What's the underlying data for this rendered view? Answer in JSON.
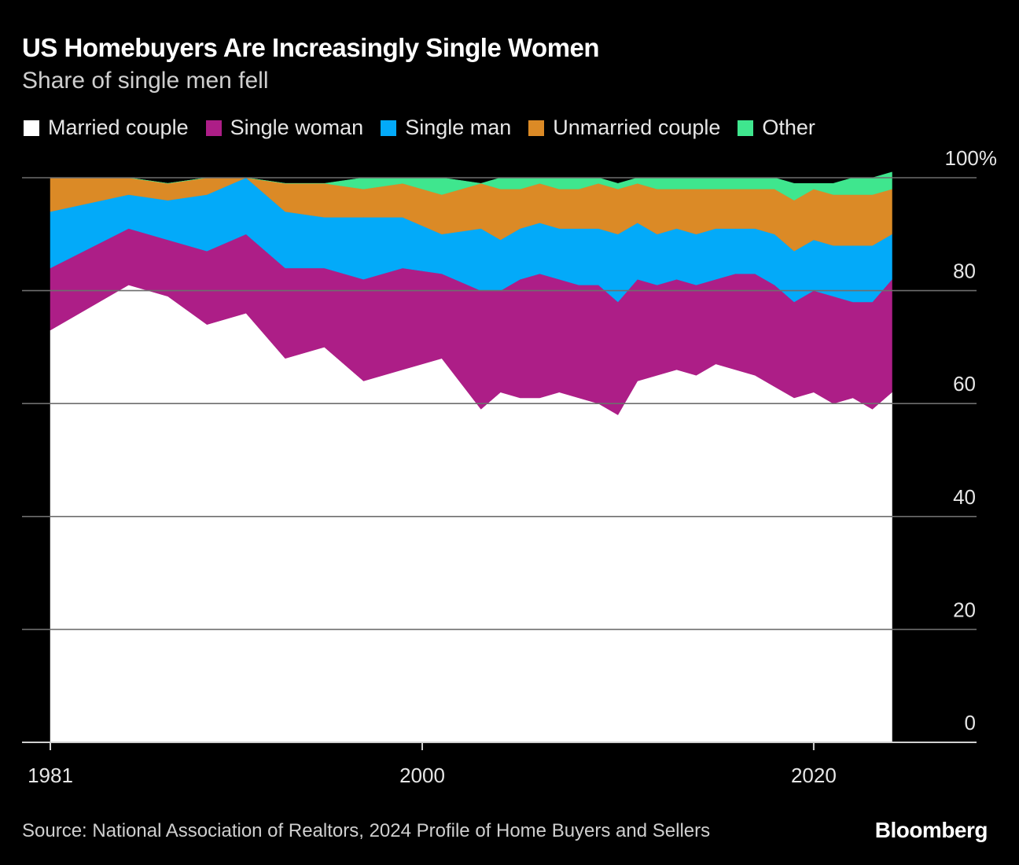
{
  "header": {
    "title": "US Homebuyers Are Increasingly Single Women",
    "subtitle": "Share of single men fell"
  },
  "footer": {
    "source": "Source: National Association of Realtors, 2024 Profile of Home Buyers and Sellers",
    "brand": "Bloomberg"
  },
  "colors": {
    "Married couple": "#ffffff",
    "Single woman": "#ad1e87",
    "Single man": "#03aaf9",
    "Unmarried couple": "#db8a26",
    "Other": "#3fe68e",
    "background": "#000000",
    "grid": "#6e6e6e"
  },
  "chart_data": {
    "type": "area",
    "stacked": true,
    "legend": [
      "Married couple",
      "Single woman",
      "Single man",
      "Unmarried couple",
      "Other"
    ],
    "legend_position": "top-left",
    "y_axis_position": "right",
    "ylim": [
      0,
      100
    ],
    "y_ticks": [
      0,
      20,
      40,
      60,
      80,
      100
    ],
    "y_tick_labels": [
      "0",
      "20",
      "40",
      "60",
      "80",
      "100%"
    ],
    "x_ticks": [
      1981,
      2000,
      2020
    ],
    "x_tick_labels": [
      "1981",
      "2000",
      "2020"
    ],
    "xlim": [
      1981,
      2027
    ],
    "x": [
      1981,
      1985,
      1987,
      1989,
      1991,
      1993,
      1995,
      1997,
      1999,
      2001,
      2003,
      2004,
      2005,
      2006,
      2007,
      2008,
      2009,
      2010,
      2011,
      2012,
      2013,
      2014,
      2015,
      2016,
      2017,
      2018,
      2019,
      2020,
      2021,
      2022,
      2023,
      2024
    ],
    "series": [
      {
        "name": "Married couple",
        "values": [
          73,
          81,
          79,
          74,
          76,
          68,
          70,
          64,
          66,
          68,
          59,
          62,
          61,
          61,
          62,
          61,
          60,
          58,
          64,
          65,
          66,
          65,
          67,
          66,
          65,
          63,
          61,
          62,
          60,
          61,
          59,
          62
        ]
      },
      {
        "name": "Single woman",
        "values": [
          11,
          10,
          10,
          13,
          14,
          16,
          14,
          18,
          18,
          15,
          21,
          18,
          21,
          22,
          20,
          20,
          21,
          20,
          18,
          16,
          16,
          16,
          15,
          17,
          18,
          18,
          17,
          18,
          19,
          17,
          19,
          20
        ]
      },
      {
        "name": "Single man",
        "values": [
          10,
          6,
          7,
          10,
          10,
          10,
          9,
          11,
          9,
          7,
          11,
          9,
          9,
          9,
          9,
          10,
          10,
          12,
          10,
          9,
          9,
          9,
          9,
          8,
          8,
          9,
          9,
          9,
          9,
          10,
          10,
          8
        ]
      },
      {
        "name": "Unmarried couple",
        "values": [
          6,
          3,
          3,
          3,
          0,
          5,
          6,
          5,
          6,
          7,
          8,
          9,
          7,
          7,
          7,
          7,
          8,
          8,
          7,
          8,
          7,
          8,
          7,
          7,
          7,
          8,
          9,
          9,
          9,
          9,
          9,
          8
        ]
      },
      {
        "name": "Other",
        "values": [
          0,
          0,
          0,
          0,
          0,
          0,
          0,
          2,
          1,
          3,
          0,
          2,
          2,
          1,
          2,
          2,
          1,
          1,
          1,
          2,
          2,
          2,
          2,
          2,
          2,
          2,
          3,
          1,
          2,
          3,
          3,
          3
        ]
      }
    ]
  }
}
